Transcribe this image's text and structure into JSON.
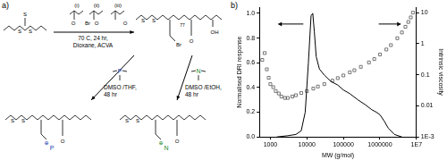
{
  "chart_data": {
    "type": "scatter",
    "panel_label": "b)",
    "xlabel": "MW (g/mol)",
    "ylabel": "Normalised DRI response",
    "y2label": "Intrinsic viscosity",
    "log": [
      "x",
      "y2"
    ],
    "grid": false,
    "xlim": [
      500,
      10000000
    ],
    "xticks": [
      1000,
      10000,
      100000,
      1000000,
      {
        "value": 10000000,
        "label": "1E7"
      }
    ],
    "ylim": [
      0,
      1.05
    ],
    "yticks": [
      {
        "value": 0,
        "label": "0.0"
      },
      0.2,
      0.4,
      0.6,
      0.8,
      {
        "value": 1,
        "label": "1.0"
      }
    ],
    "y2lim": [
      0.001,
      15
    ],
    "y2ticks": [
      {
        "value": 0.001,
        "label": "1E-3"
      },
      0.01,
      0.1,
      1,
      10
    ],
    "series": [
      {
        "type": "line",
        "color": "#000000",
        "marker": "none",
        "line_style": "solid",
        "x": [
          1500,
          3000,
          5000,
          7000,
          9000,
          11000,
          13000,
          14500,
          16000,
          18000,
          22000,
          30000,
          45000,
          70000,
          100000,
          150000,
          250000,
          400000,
          600000,
          800000,
          1000000,
          1300000,
          1700000,
          2500000,
          4000000
        ],
        "values": [
          0.0,
          0.01,
          0.02,
          0.05,
          0.2,
          0.6,
          0.98,
          1.0,
          0.85,
          0.65,
          0.55,
          0.5,
          0.45,
          0.42,
          0.38,
          0.35,
          0.3,
          0.26,
          0.22,
          0.2,
          0.18,
          0.13,
          0.07,
          0.02,
          0.0
        ]
      },
      {
        "type": "scatter",
        "color": "#555555",
        "marker": "square",
        "axis": "y2",
        "x": [
          600,
          700,
          800,
          900,
          1000,
          1200,
          1400,
          1700,
          2000,
          2500,
          3000,
          4000,
          5000,
          7000,
          10000,
          15000,
          20000,
          30000,
          50000,
          70000,
          100000,
          150000,
          200000,
          300000,
          500000,
          700000,
          1000000,
          1500000,
          2000000,
          3000000,
          4000000,
          5000000,
          6000000,
          7000000,
          8000000
        ],
        "values": [
          0.3,
          0.5,
          0.15,
          0.08,
          0.05,
          0.04,
          0.03,
          0.025,
          0.02,
          0.018,
          0.018,
          0.02,
          0.022,
          0.026,
          0.03,
          0.036,
          0.042,
          0.05,
          0.065,
          0.078,
          0.095,
          0.12,
          0.14,
          0.18,
          0.25,
          0.32,
          0.45,
          0.65,
          0.9,
          1.5,
          2.3,
          3.5,
          5,
          7,
          10
        ]
      }
    ]
  },
  "diagram": {
    "panel_label": "a)",
    "monomers": [
      "(i)",
      "(ii)",
      "(iii)"
    ],
    "polymerisation_conditions": [
      "70 C, 24 hr,",
      "Dioxane, ACVA"
    ],
    "raft_atoms": [
      "S",
      "S",
      "S"
    ],
    "monomer_atoms": [
      "O",
      "Br",
      "O",
      "O"
    ],
    "polymer_subscript": "77",
    "polymer_atoms": [
      "S",
      "S",
      "Br",
      "O",
      "OH"
    ],
    "routes": [
      {
        "conditions": [
          "DMSO /THF,",
          "48 hr"
        ],
        "reagent_atom": "P",
        "product_atoms": [
          "⊕",
          "P",
          "O"
        ]
      },
      {
        "conditions": [
          "DMSO /EtOH,",
          "48 hr"
        ],
        "reagent_atom": "N",
        "product_atoms": [
          "⊕",
          "N",
          "O"
        ]
      }
    ]
  }
}
